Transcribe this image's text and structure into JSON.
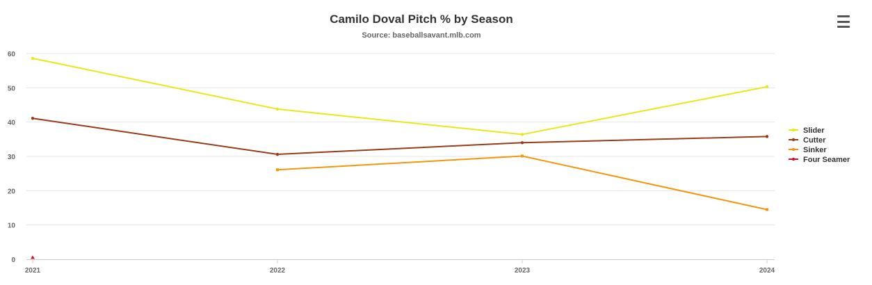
{
  "chart_data": {
    "type": "line",
    "title": "Camilo Doval Pitch % by Season",
    "subtitle": "Source: baseballsavant.mlb.com",
    "categories": [
      "2021",
      "2022",
      "2023",
      "2024"
    ],
    "ylim": [
      0,
      60
    ],
    "yticks": [
      0,
      10,
      20,
      30,
      40,
      50,
      60
    ],
    "grid": true,
    "legend_position": "right",
    "series": [
      {
        "name": "Slider",
        "color": "#e8e81a",
        "values": [
          58.6,
          43.8,
          36.4,
          50.3
        ]
      },
      {
        "name": "Cutter",
        "color": "#993a1a",
        "values": [
          41.1,
          30.6,
          34.0,
          35.8
        ]
      },
      {
        "name": "Sinker",
        "color": "#f5950e",
        "values": [
          null,
          26.1,
          30.1,
          14.5
        ]
      },
      {
        "name": "Four Seamer",
        "color": "#d1102e",
        "values": [
          0.3,
          null,
          null,
          null
        ]
      }
    ]
  },
  "ui": {
    "menu_icon": "hamburger-menu-icon"
  }
}
